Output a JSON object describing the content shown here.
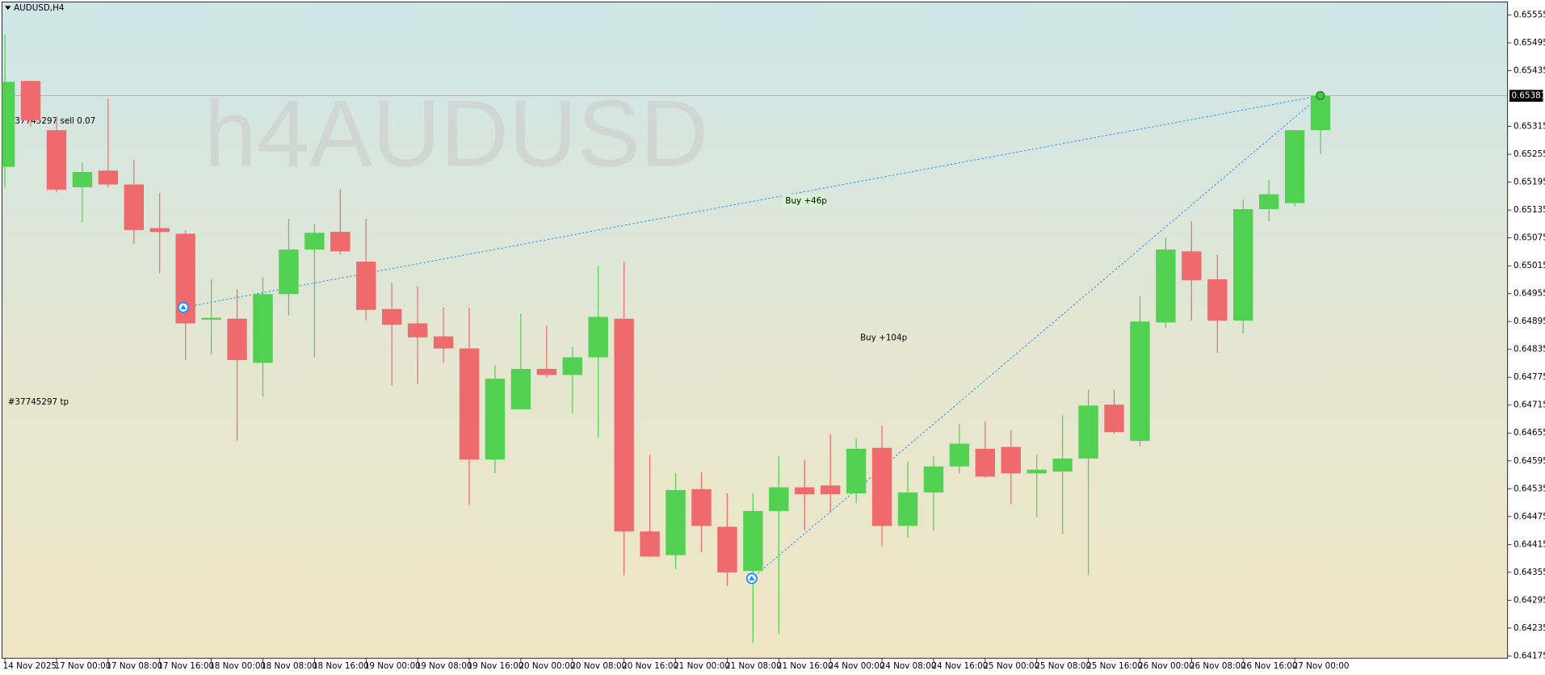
{
  "chart_data": {
    "type": "candlestick",
    "symbol_label": "AUDUSD,H4",
    "watermark": "h4AUDUSD",
    "order_labels": [
      "#37745297 sell 0.07",
      "#37745297 tp"
    ],
    "annotations": [
      "Buy +46p",
      "Buy +104p"
    ],
    "up_color": "#52d052",
    "down_color": "#ef6a6c",
    "categories": [
      "14 Nov 2025",
      null,
      "17 Nov 00:00",
      null,
      "17 Nov 08:00",
      null,
      "17 Nov 16:00",
      null,
      "18 Nov 00:00",
      null,
      "18 Nov 08:00",
      null,
      "18 Nov 16:00",
      null,
      "19 Nov 00:00",
      null,
      "19 Nov 08:00",
      null,
      "19 Nov 16:00",
      null,
      "20 Nov 00:00",
      null,
      "20 Nov 08:00",
      null,
      "20 Nov 16:00",
      null,
      "21 Nov 00:00",
      null,
      "21 Nov 08:00",
      null,
      "21 Nov 16:00",
      null,
      "24 Nov 00:00",
      null,
      "24 Nov 08:00",
      null,
      "24 Nov 16:00",
      null,
      "25 Nov 00:00",
      null,
      "25 Nov 08:00",
      null,
      "25 Nov 16:00",
      null,
      "26 Nov 00:00",
      null,
      "26 Nov 08:00",
      null,
      "26 Nov 16:00",
      null,
      "27 Nov 00:00",
      null
    ],
    "open": [
      0.65228,
      0.65413,
      0.65307,
      0.65184,
      0.6522,
      0.6519,
      0.65096,
      0.65084,
      0.64899,
      0.64901,
      0.64806,
      0.64954,
      0.6505,
      0.65088,
      0.65024,
      0.64922,
      0.64891,
      0.64863,
      0.64837,
      0.64598,
      0.64706,
      0.64793,
      0.6478,
      0.64818,
      0.64901,
      0.64443,
      0.64392,
      0.64534,
      0.64453,
      0.64358,
      0.64487,
      0.64538,
      0.64542,
      0.64525,
      0.64623,
      0.64455,
      0.64527,
      0.64583,
      0.64621,
      0.64625,
      0.64568,
      0.64572,
      0.646,
      0.64716,
      0.64638,
      0.64893,
      0.65046,
      0.64986,
      0.64897,
      0.65137,
      0.6515,
      0.65307
    ],
    "high": [
      0.65513,
      0.65413,
      0.65336,
      0.65237,
      0.65375,
      0.65243,
      0.65171,
      0.65092,
      0.64986,
      0.64965,
      0.6499,
      0.65116,
      0.65105,
      0.65179,
      0.65116,
      0.64978,
      0.64971,
      0.64925,
      0.64925,
      0.64801,
      0.64912,
      0.64886,
      0.6484,
      0.65014,
      0.65024,
      0.64608,
      0.64568,
      0.6457,
      0.64525,
      0.64525,
      0.64606,
      0.64598,
      0.64653,
      0.64644,
      0.6467,
      0.64593,
      0.64606,
      0.64674,
      0.6468,
      0.64661,
      0.64608,
      0.64693,
      0.64748,
      0.64748,
      0.6495,
      0.65075,
      0.65111,
      0.65039,
      0.65158,
      0.652,
      0.65307,
      0.65381
    ],
    "low": [
      0.65184,
      0.65315,
      0.65173,
      0.65109,
      0.65184,
      0.65063,
      0.64999,
      0.64812,
      0.64823,
      0.64638,
      0.64733,
      0.64908,
      0.64818,
      0.65039,
      0.64897,
      0.64757,
      0.64761,
      0.64806,
      0.645,
      0.64568,
      0.64706,
      0.64774,
      0.64697,
      0.64646,
      0.64349,
      0.64387,
      0.64362,
      0.64398,
      0.64326,
      0.64203,
      0.64222,
      0.64445,
      0.64483,
      0.64504,
      0.64411,
      0.6443,
      0.64445,
      0.64568,
      0.64559,
      0.64502,
      0.64474,
      0.64438,
      0.64349,
      0.64653,
      0.64627,
      0.6488,
      0.64897,
      0.64827,
      0.64869,
      0.65111,
      0.65143,
      0.65256
    ],
    "close": [
      0.65411,
      0.65328,
      0.65179,
      0.65217,
      0.6519,
      0.65092,
      0.65088,
      0.64891,
      0.64903,
      0.64812,
      0.64954,
      0.6505,
      0.65086,
      0.65046,
      0.6492,
      0.64888,
      0.64861,
      0.64837,
      0.64598,
      0.64772,
      0.64793,
      0.6478,
      0.64818,
      0.64905,
      0.64443,
      0.64389,
      0.64532,
      0.64455,
      0.64355,
      0.64487,
      0.64538,
      0.64523,
      0.64523,
      0.64621,
      0.64455,
      0.64527,
      0.64583,
      0.64632,
      0.64561,
      0.64568,
      0.64576,
      0.646,
      0.64714,
      0.64657,
      0.64895,
      0.6505,
      0.64984,
      0.64897,
      0.65137,
      0.65169,
      0.65307,
      0.65381
    ],
    "ylim": [
      0.6417,
      0.65583
    ],
    "yticks": [
      0.65555,
      0.65495,
      0.65435,
      0.65315,
      0.65255,
      0.65195,
      0.65135,
      0.65075,
      0.65015,
      0.64955,
      0.64895,
      0.64835,
      0.64775,
      0.64715,
      0.64655,
      0.64595,
      0.64535,
      0.64475,
      0.64415,
      0.64355,
      0.64295,
      0.64235,
      0.64175
    ]
  }
}
